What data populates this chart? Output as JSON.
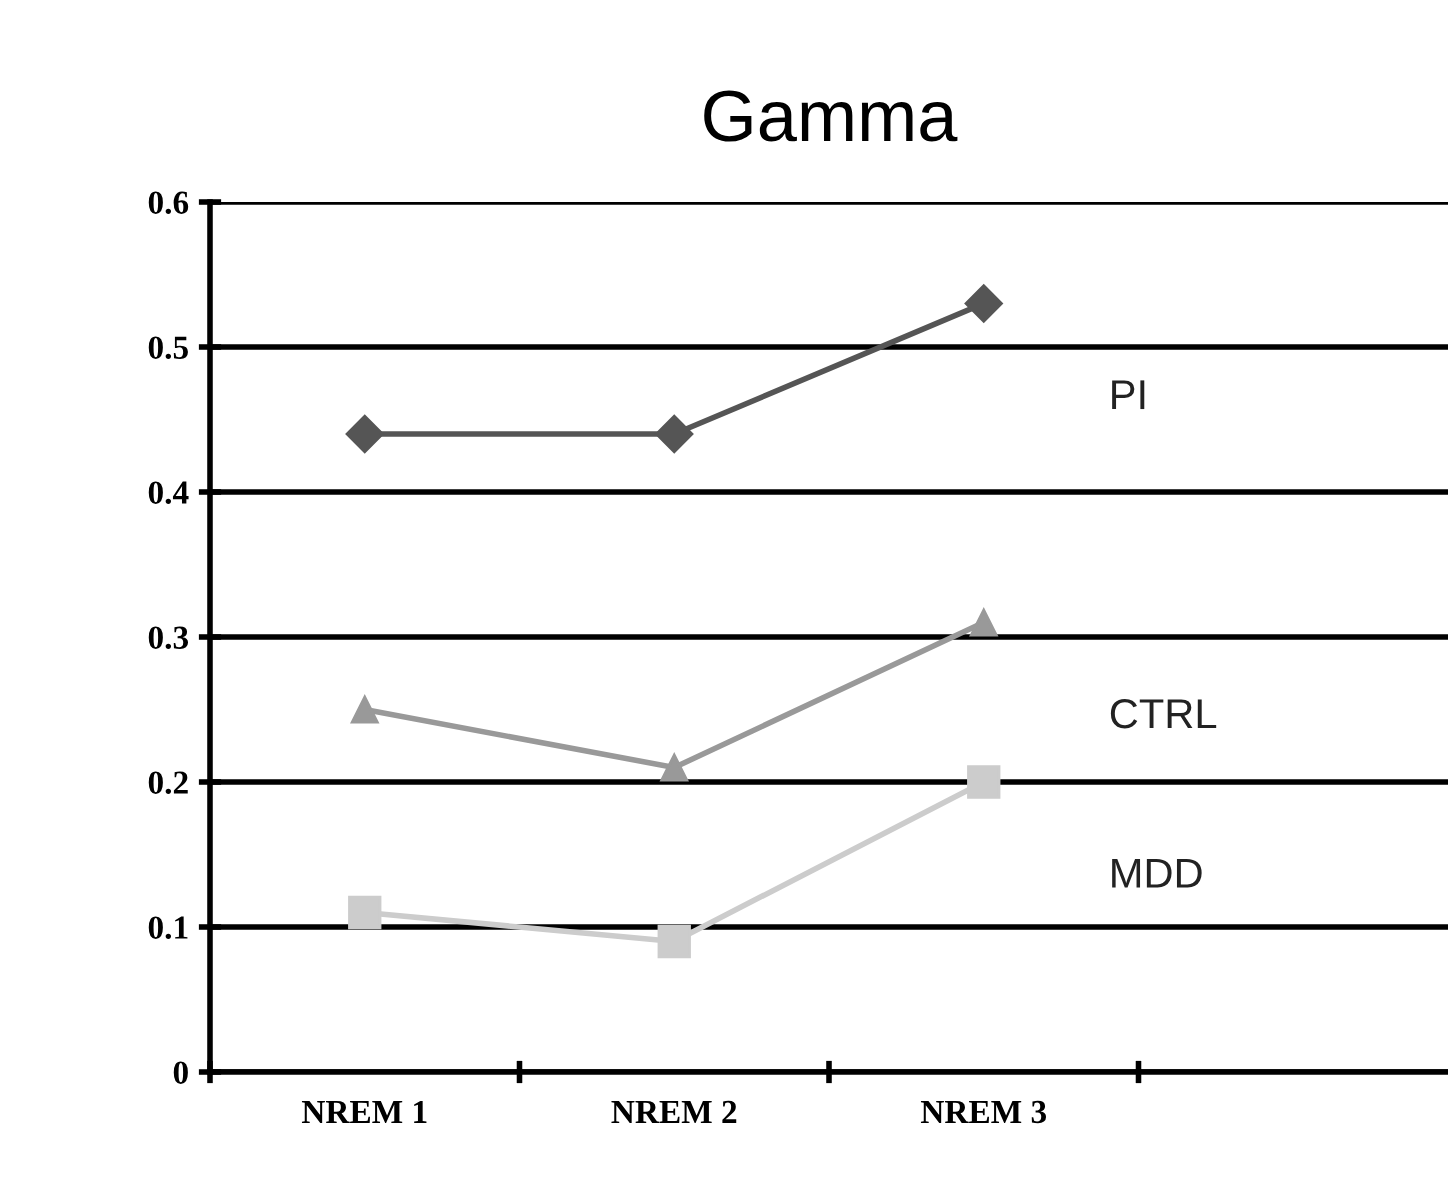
{
  "chart_data": {
    "type": "line",
    "title": "Gamma",
    "categories": [
      "NREM 1",
      "NREM 2",
      "NREM 3",
      null
    ],
    "series": [
      {
        "name": "PI",
        "color": "#555555",
        "marker": "diamond",
        "values": [
          0.44,
          0.44,
          0.53,
          null
        ]
      },
      {
        "name": "CTRL",
        "color": "#999999",
        "marker": "triangle",
        "values": [
          0.25,
          0.21,
          0.31,
          null
        ]
      },
      {
        "name": "MDD",
        "color": "#cccccc",
        "marker": "square",
        "values": [
          0.11,
          0.09,
          0.2,
          null
        ]
      }
    ],
    "ylim": [
      0,
      0.6
    ],
    "yticks": [
      0,
      0.1,
      0.2,
      0.3,
      0.4,
      0.5,
      0.6
    ],
    "grid": "y",
    "legend": false
  }
}
